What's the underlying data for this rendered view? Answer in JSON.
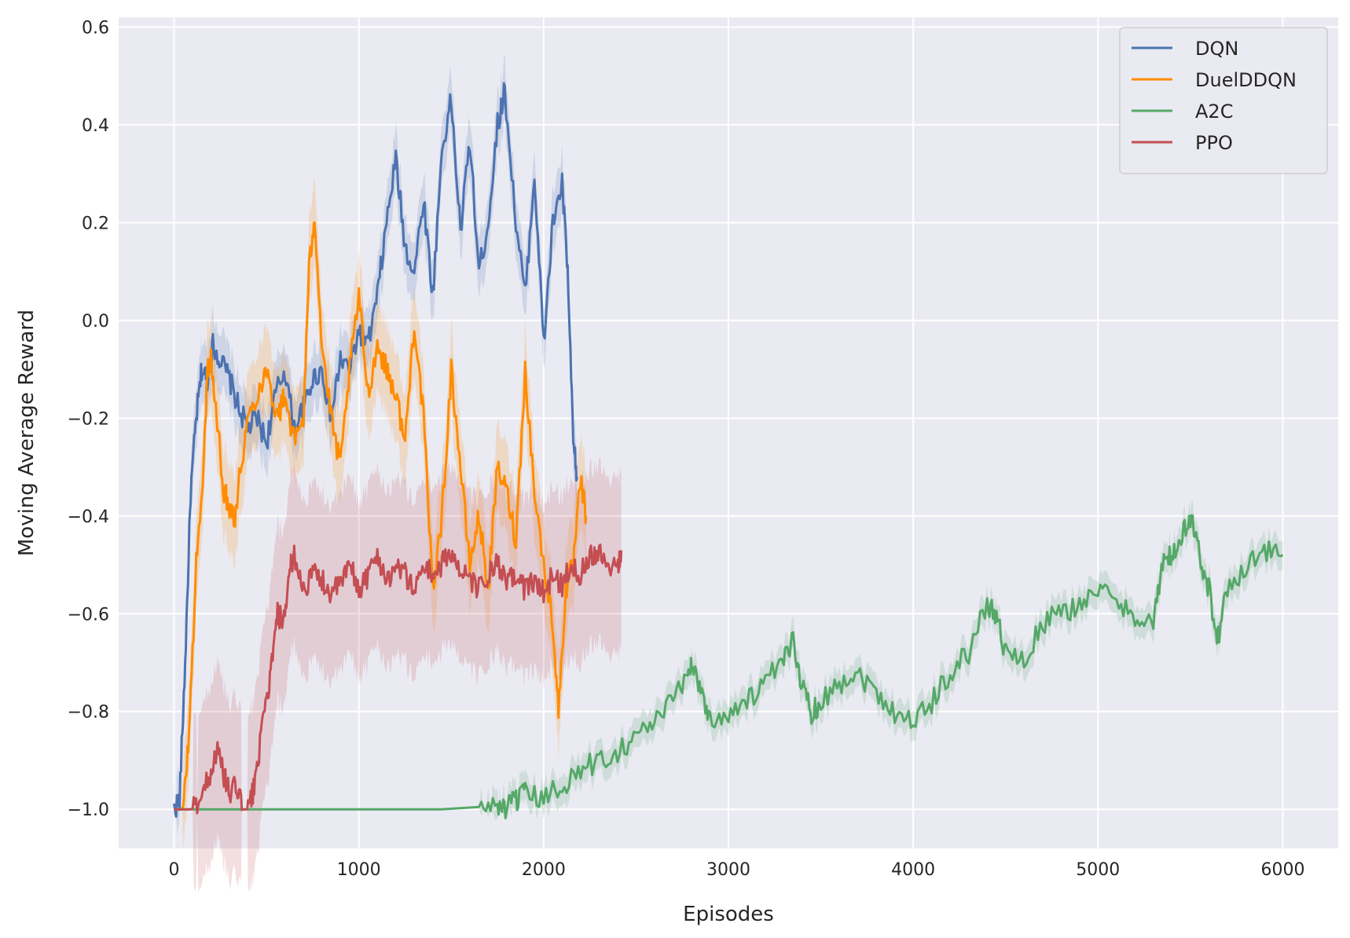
{
  "chart_data": {
    "type": "line",
    "xlabel": "Episodes",
    "ylabel": "Moving Average Reward",
    "xlim": [
      -300,
      6300
    ],
    "ylim": [
      -1.08,
      0.62
    ],
    "xticks": [
      0,
      1000,
      2000,
      3000,
      4000,
      5000,
      6000
    ],
    "xtick_labels": [
      "0",
      "1000",
      "2000",
      "3000",
      "4000",
      "5000",
      "6000"
    ],
    "yticks": [
      0.6,
      0.4,
      0.2,
      0.0,
      -0.2,
      -0.4,
      -0.6,
      -0.8,
      -1.0
    ],
    "ytick_labels": [
      "0.6",
      "0.4",
      "0.2",
      "0.0",
      "−0.2",
      "−0.4",
      "−0.6",
      "−0.8",
      "−1.0"
    ],
    "grid": true,
    "background": "#eaeaf2",
    "legend_position": "top-right",
    "series": [
      {
        "name": "DQN",
        "color": "#4c72b0",
        "band": 0.06,
        "x": [
          0,
          30,
          60,
          90,
          120,
          150,
          180,
          210,
          250,
          300,
          350,
          400,
          450,
          500,
          550,
          600,
          650,
          700,
          750,
          800,
          850,
          900,
          950,
          1000,
          1050,
          1100,
          1150,
          1200,
          1250,
          1300,
          1350,
          1400,
          1450,
          1500,
          1550,
          1600,
          1650,
          1700,
          1750,
          1790,
          1850,
          1900,
          1950,
          2000,
          2050,
          2100,
          2130,
          2160,
          2180
        ],
        "y": [
          -1.0,
          -0.98,
          -0.7,
          -0.35,
          -0.2,
          -0.1,
          -0.12,
          -0.05,
          -0.08,
          -0.12,
          -0.18,
          -0.22,
          -0.2,
          -0.25,
          -0.15,
          -0.1,
          -0.22,
          -0.18,
          -0.12,
          -0.1,
          -0.2,
          -0.08,
          -0.1,
          -0.02,
          -0.05,
          0.05,
          0.2,
          0.33,
          0.15,
          0.1,
          0.25,
          0.05,
          0.35,
          0.45,
          0.18,
          0.37,
          0.1,
          0.2,
          0.4,
          0.47,
          0.2,
          0.05,
          0.3,
          -0.05,
          0.2,
          0.28,
          0.1,
          -0.25,
          -0.32
        ]
      },
      {
        "name": "DuelDDQN",
        "color": "#ff8c00",
        "band": 0.09,
        "x": [
          0,
          50,
          80,
          120,
          160,
          180,
          200,
          230,
          270,
          300,
          330,
          360,
          400,
          450,
          500,
          560,
          600,
          650,
          700,
          730,
          760,
          800,
          850,
          900,
          950,
          1000,
          1050,
          1100,
          1150,
          1200,
          1250,
          1300,
          1350,
          1400,
          1450,
          1500,
          1550,
          1600,
          1650,
          1700,
          1750,
          1800,
          1850,
          1900,
          1950,
          2000,
          2050,
          2080,
          2120,
          2160,
          2200,
          2230
        ],
        "y": [
          -1.0,
          -1.0,
          -0.85,
          -0.5,
          -0.3,
          -0.1,
          -0.08,
          -0.2,
          -0.35,
          -0.38,
          -0.4,
          -0.3,
          -0.2,
          -0.15,
          -0.1,
          -0.2,
          -0.15,
          -0.25,
          -0.2,
          0.1,
          0.22,
          -0.05,
          -0.2,
          -0.3,
          -0.1,
          0.05,
          -0.15,
          -0.05,
          -0.1,
          -0.15,
          -0.25,
          0.0,
          -0.2,
          -0.55,
          -0.4,
          -0.1,
          -0.3,
          -0.5,
          -0.4,
          -0.55,
          -0.3,
          -0.35,
          -0.45,
          -0.1,
          -0.35,
          -0.5,
          -0.62,
          -0.8,
          -0.55,
          -0.5,
          -0.33,
          -0.4
        ]
      },
      {
        "name": "A2C",
        "color": "#55a868",
        "band": 0.03,
        "x": [
          0,
          1650,
          1750,
          1800,
          1850,
          1900,
          2000,
          2100,
          2200,
          2300,
          2400,
          2500,
          2600,
          2700,
          2780,
          2800,
          2850,
          2900,
          3000,
          3100,
          3200,
          3300,
          3350,
          3400,
          3450,
          3500,
          3600,
          3700,
          3800,
          3900,
          4000,
          4100,
          4200,
          4300,
          4400,
          4450,
          4500,
          4600,
          4700,
          4800,
          4900,
          5000,
          5100,
          5200,
          5300,
          5350,
          5400,
          5450,
          5500,
          5550,
          5600,
          5650,
          5700,
          5800,
          5900,
          6000
        ],
        "y": [
          -1.0,
          -1.0,
          -0.99,
          -1.0,
          -0.98,
          -0.97,
          -0.98,
          -0.95,
          -0.92,
          -0.9,
          -0.88,
          -0.85,
          -0.82,
          -0.78,
          -0.72,
          -0.7,
          -0.75,
          -0.82,
          -0.8,
          -0.78,
          -0.74,
          -0.7,
          -0.65,
          -0.75,
          -0.8,
          -0.78,
          -0.74,
          -0.72,
          -0.76,
          -0.8,
          -0.82,
          -0.78,
          -0.72,
          -0.68,
          -0.58,
          -0.6,
          -0.68,
          -0.7,
          -0.62,
          -0.6,
          -0.58,
          -0.55,
          -0.58,
          -0.6,
          -0.62,
          -0.5,
          -0.48,
          -0.45,
          -0.4,
          -0.48,
          -0.55,
          -0.65,
          -0.55,
          -0.5,
          -0.47,
          -0.48
        ]
      },
      {
        "name": "PPO",
        "color": "#c44e52",
        "band": 0.18,
        "x": [
          0,
          100,
          150,
          200,
          230,
          270,
          300,
          340,
          370,
          400,
          430,
          460,
          500,
          530,
          560,
          600,
          630,
          650,
          700,
          750,
          800,
          850,
          900,
          950,
          1000,
          1050,
          1100,
          1150,
          1200,
          1250,
          1300,
          1350,
          1400,
          1450,
          1500,
          1550,
          1600,
          1650,
          1700,
          1750,
          1800,
          1850,
          1900,
          1950,
          2000,
          2050,
          2100,
          2150,
          2200,
          2250,
          2300,
          2350,
          2400,
          2420
        ],
        "y": [
          -1.0,
          -1.0,
          -0.97,
          -0.92,
          -0.88,
          -0.93,
          -0.97,
          -0.95,
          -1.0,
          -1.0,
          -0.96,
          -0.88,
          -0.78,
          -0.7,
          -0.6,
          -0.62,
          -0.5,
          -0.48,
          -0.55,
          -0.52,
          -0.53,
          -0.56,
          -0.54,
          -0.5,
          -0.55,
          -0.52,
          -0.48,
          -0.53,
          -0.5,
          -0.52,
          -0.55,
          -0.5,
          -0.52,
          -0.5,
          -0.47,
          -0.52,
          -0.53,
          -0.55,
          -0.52,
          -0.5,
          -0.54,
          -0.52,
          -0.55,
          -0.53,
          -0.56,
          -0.52,
          -0.54,
          -0.5,
          -0.52,
          -0.48,
          -0.47,
          -0.5,
          -0.5,
          -0.47
        ]
      }
    ]
  }
}
